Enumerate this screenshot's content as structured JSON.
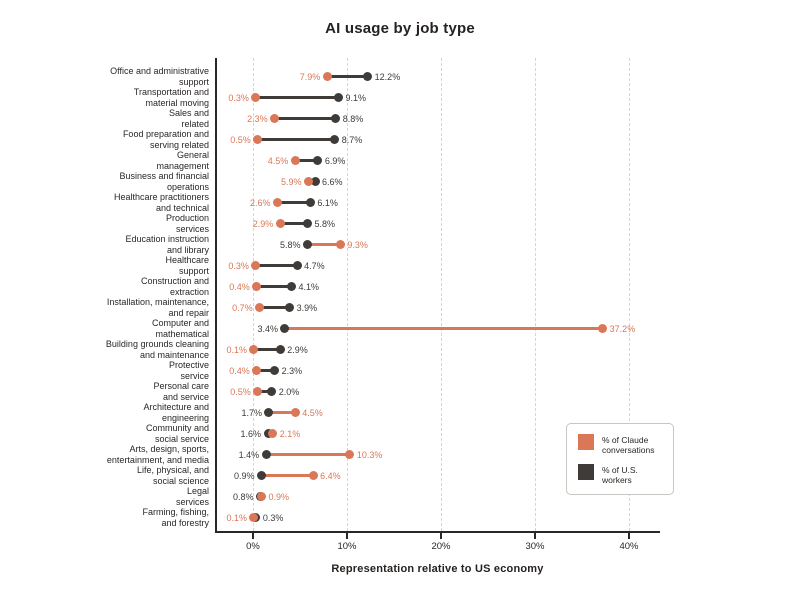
{
  "page": {
    "background": "#ffffff"
  },
  "chart_data": {
    "type": "dumbbell",
    "title": "AI usage by job type",
    "xlabel": "Representation relative to US economy",
    "xlim": [
      0,
      43.3
    ],
    "grid": "vertical-dashed",
    "legend_position": "inside-bottom-right",
    "colors": {
      "claude": "#D97757",
      "workers": "#3E3B38",
      "grid": "#D8D4CF",
      "axis": "#2A2726",
      "text": "#2A2726",
      "background": "#FFFFFF",
      "legend_border": "#C9C5C0"
    },
    "x_ticks": [
      {
        "label": "0%",
        "value": 0
      },
      {
        "label": "10%",
        "value": 10
      },
      {
        "label": "20%",
        "value": 20
      },
      {
        "label": "30%",
        "value": 30
      },
      {
        "label": "40%",
        "value": 40
      }
    ],
    "series": [
      {
        "key": "claude",
        "name": "% of Claude conversations",
        "color": "#D97757"
      },
      {
        "key": "workers",
        "name": "% of U.S. workers",
        "color": "#3E3B38"
      }
    ],
    "rows": [
      {
        "label": [
          "Office and administrative",
          "support"
        ],
        "claude": 7.9,
        "workers": 12.2,
        "claude_label": "7.9%",
        "workers_label": "12.2%"
      },
      {
        "label": [
          "Transportation and",
          "material moving"
        ],
        "claude": 0.3,
        "workers": 9.1,
        "claude_label": "0.3%",
        "workers_label": "9.1%"
      },
      {
        "label": [
          "Sales and",
          "related"
        ],
        "claude": 2.3,
        "workers": 8.8,
        "claude_label": "2.3%",
        "workers_label": "8.8%"
      },
      {
        "label": [
          "Food preparation and",
          "serving related"
        ],
        "claude": 0.5,
        "workers": 8.7,
        "claude_label": "0.5%",
        "workers_label": "8.7%"
      },
      {
        "label": [
          "General",
          "management"
        ],
        "claude": 4.5,
        "workers": 6.9,
        "claude_label": "4.5%",
        "workers_label": "6.9%"
      },
      {
        "label": [
          "Business and financial",
          "operations"
        ],
        "claude": 5.9,
        "workers": 6.6,
        "claude_label": "5.9%",
        "workers_label": "6.6%"
      },
      {
        "label": [
          "Healthcare practitioners",
          "and technical"
        ],
        "claude": 2.6,
        "workers": 6.1,
        "claude_label": "2.6%",
        "workers_label": "6.1%"
      },
      {
        "label": [
          "Production",
          "services"
        ],
        "claude": 2.9,
        "workers": 5.8,
        "claude_label": "2.9%",
        "workers_label": "5.8%"
      },
      {
        "label": [
          "Education instruction",
          "and library"
        ],
        "claude": 9.3,
        "workers": 5.8,
        "claude_label": "9.3%",
        "workers_label": "5.8%"
      },
      {
        "label": [
          "Healthcare",
          "support"
        ],
        "claude": 0.3,
        "workers": 4.7,
        "claude_label": "0.3%",
        "workers_label": "4.7%"
      },
      {
        "label": [
          "Construction and",
          "extraction"
        ],
        "claude": 0.4,
        "workers": 4.1,
        "claude_label": "0.4%",
        "workers_label": "4.1%"
      },
      {
        "label": [
          "Installation, maintenance,",
          "and repair"
        ],
        "claude": 0.7,
        "workers": 3.9,
        "claude_label": "0.7%",
        "workers_label": "3.9%"
      },
      {
        "label": [
          "Computer and",
          "mathematical"
        ],
        "claude": 37.2,
        "workers": 3.4,
        "claude_label": "37.2%",
        "workers_label": "3.4%"
      },
      {
        "label": [
          "Building grounds cleaning",
          "and maintenance"
        ],
        "claude": 0.1,
        "workers": 2.9,
        "claude_label": "0.1%",
        "workers_label": "2.9%"
      },
      {
        "label": [
          "Protective",
          "service"
        ],
        "claude": 0.4,
        "workers": 2.3,
        "claude_label": "0.4%",
        "workers_label": "2.3%"
      },
      {
        "label": [
          "Personal care",
          "and service"
        ],
        "claude": 0.5,
        "workers": 2.0,
        "claude_label": "0.5%",
        "workers_label": "2.0%"
      },
      {
        "label": [
          "Architecture and",
          "engineering"
        ],
        "claude": 4.5,
        "workers": 1.7,
        "claude_label": "4.5%",
        "workers_label": "1.7%"
      },
      {
        "label": [
          "Community and",
          "social service"
        ],
        "claude": 2.1,
        "workers": 1.6,
        "claude_label": "2.1%",
        "workers_label": "1.6%"
      },
      {
        "label": [
          "Arts, design, sports,",
          "entertainment, and media"
        ],
        "claude": 10.3,
        "workers": 1.4,
        "claude_label": "10.3%",
        "workers_label": "1.4%"
      },
      {
        "label": [
          "Life, physical, and",
          "social science"
        ],
        "claude": 6.4,
        "workers": 0.9,
        "claude_label": "6.4%",
        "workers_label": "0.9%"
      },
      {
        "label": [
          "Legal",
          "services"
        ],
        "claude": 0.9,
        "workers": 0.8,
        "claude_label": "0.9%",
        "workers_label": "0.8%"
      },
      {
        "label": [
          "Farming, fishing,",
          "and forestry"
        ],
        "claude": 0.1,
        "workers": 0.3,
        "claude_label": "0.1%",
        "workers_label": "0.3%"
      }
    ]
  }
}
